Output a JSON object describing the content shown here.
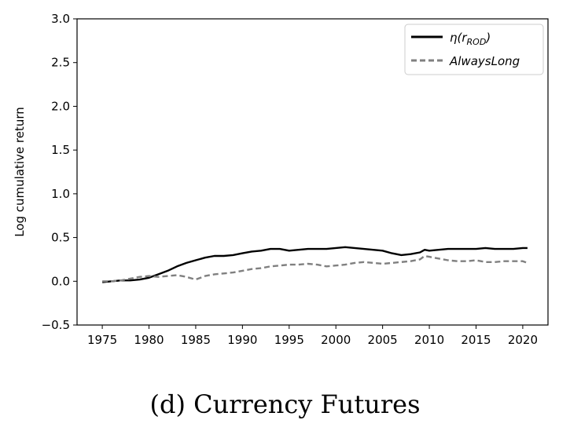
{
  "caption": "(d) Currency Futures",
  "chart_data": {
    "type": "line",
    "title": "",
    "xlabel": "",
    "ylabel": "Log cumulative return",
    "xlim": [
      1972.3,
      2022.7
    ],
    "ylim": [
      -0.5,
      3.0
    ],
    "xticks": [
      1975,
      1980,
      1985,
      1990,
      1995,
      2000,
      2005,
      2010,
      2015,
      2020
    ],
    "xtick_labels": [
      "1975",
      "1980",
      "1985",
      "1990",
      "1995",
      "2000",
      "2005",
      "2010",
      "2015",
      "2020"
    ],
    "yticks": [
      -0.5,
      0.0,
      0.5,
      1.0,
      1.5,
      2.0,
      2.5,
      3.0
    ],
    "ytick_labels": [
      "−0.5",
      "0.0",
      "0.5",
      "1.0",
      "1.5",
      "2.0",
      "2.5",
      "3.0"
    ],
    "legend_position": "top-right",
    "series": [
      {
        "name": "η(r_ROD)",
        "legend_main": "η(r",
        "legend_sub": "ROD",
        "legend_close": ")",
        "style": "solid",
        "color": "#000000",
        "x": [
          1975,
          1976,
          1977,
          1978,
          1979,
          1980,
          1981,
          1982,
          1983,
          1984,
          1985,
          1986,
          1987,
          1988,
          1989,
          1990,
          1991,
          1992,
          1993,
          1994,
          1995,
          1996,
          1997,
          1998,
          1999,
          2000,
          2001,
          2002,
          2003,
          2004,
          2005,
          2006,
          2007,
          2008,
          2009,
          2009.5,
          2010,
          2011,
          2012,
          2013,
          2014,
          2015,
          2016,
          2017,
          2018,
          2019,
          2020,
          2020.5
        ],
        "y": [
          -0.01,
          0.0,
          0.01,
          0.01,
          0.02,
          0.04,
          0.08,
          0.12,
          0.17,
          0.21,
          0.24,
          0.27,
          0.29,
          0.29,
          0.3,
          0.32,
          0.34,
          0.35,
          0.37,
          0.37,
          0.35,
          0.36,
          0.37,
          0.37,
          0.37,
          0.38,
          0.39,
          0.38,
          0.37,
          0.36,
          0.35,
          0.32,
          0.3,
          0.31,
          0.33,
          0.36,
          0.35,
          0.36,
          0.37,
          0.37,
          0.37,
          0.37,
          0.38,
          0.37,
          0.37,
          0.37,
          0.38,
          0.38
        ]
      },
      {
        "name": "AlwaysLong",
        "style": "dashed",
        "color": "#808080",
        "x": [
          1975,
          1976,
          1977,
          1978,
          1979,
          1980,
          1981,
          1982,
          1983,
          1984,
          1985,
          1986,
          1987,
          1988,
          1989,
          1990,
          1991,
          1992,
          1993,
          1994,
          1995,
          1996,
          1997,
          1998,
          1999,
          2000,
          2001,
          2002,
          2003,
          2004,
          2005,
          2006,
          2007,
          2008,
          2009,
          2009.5,
          2010,
          2011,
          2012,
          2013,
          2014,
          2015,
          2016,
          2017,
          2018,
          2019,
          2020,
          2020.5
        ],
        "y": [
          0.0,
          0.0,
          0.01,
          0.03,
          0.05,
          0.06,
          0.05,
          0.06,
          0.07,
          0.05,
          0.02,
          0.06,
          0.08,
          0.09,
          0.1,
          0.12,
          0.14,
          0.15,
          0.17,
          0.18,
          0.19,
          0.19,
          0.2,
          0.19,
          0.17,
          0.18,
          0.19,
          0.21,
          0.22,
          0.21,
          0.2,
          0.21,
          0.22,
          0.23,
          0.25,
          0.29,
          0.28,
          0.26,
          0.24,
          0.23,
          0.23,
          0.24,
          0.22,
          0.22,
          0.23,
          0.23,
          0.23,
          0.21
        ]
      }
    ]
  }
}
